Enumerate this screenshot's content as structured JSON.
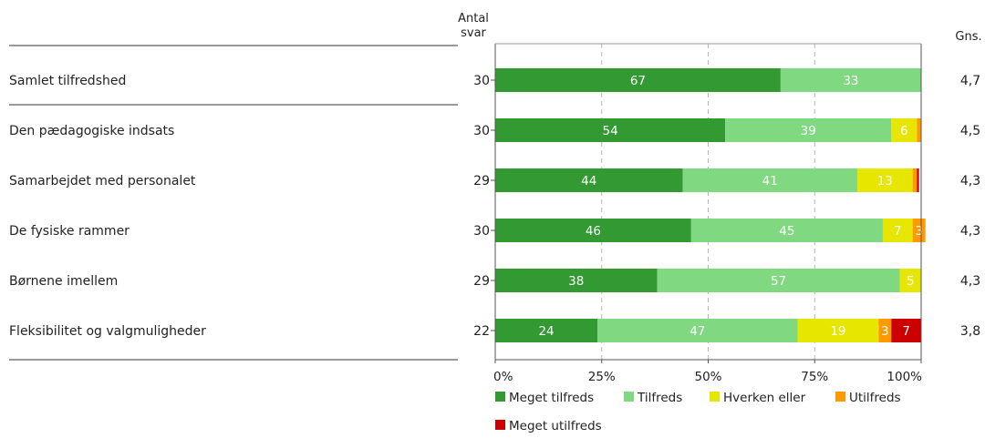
{
  "chart_data": {
    "type": "bar",
    "orientation": "horizontal",
    "stacked": true,
    "header_n": [
      "Antal",
      "svar"
    ],
    "header_avg": "Gns.",
    "categories": [
      "Samlet tilfredshed",
      "Den pædagogiske indsats",
      "Samarbejdet med personalet",
      "De fysiske rammer",
      "Børnene imellem",
      "Fleksibilitet og valgmuligheder"
    ],
    "n": [
      "30",
      "30",
      "29",
      "30",
      "29",
      "22"
    ],
    "averages": [
      "4,7",
      "4,5",
      "4,3",
      "4,3",
      "4,3",
      "3,8"
    ],
    "series": [
      {
        "name": "Meget tilfreds",
        "color": "#339933",
        "values": [
          67,
          54,
          44,
          46,
          38,
          24
        ]
      },
      {
        "name": "Tilfreds",
        "color": "#80d880",
        "values": [
          33,
          39,
          41,
          45,
          57,
          47
        ]
      },
      {
        "name": "Hverken eller",
        "color": "#e6e600",
        "values": [
          0,
          6,
          13,
          7,
          5,
          19
        ]
      },
      {
        "name": "Utilfreds",
        "color": "#ff9900",
        "values": [
          0,
          1,
          1,
          3,
          0,
          3
        ]
      },
      {
        "name": "Meget utilfreds",
        "color": "#cc0000",
        "values": [
          0,
          0,
          0.5,
          0,
          0,
          7
        ]
      }
    ],
    "x_ticks": [
      "0%",
      "25%",
      "50%",
      "75%",
      "100%"
    ],
    "xlim": [
      0,
      100
    ],
    "grid": "vertical dashed",
    "legend_position": "bottom"
  }
}
